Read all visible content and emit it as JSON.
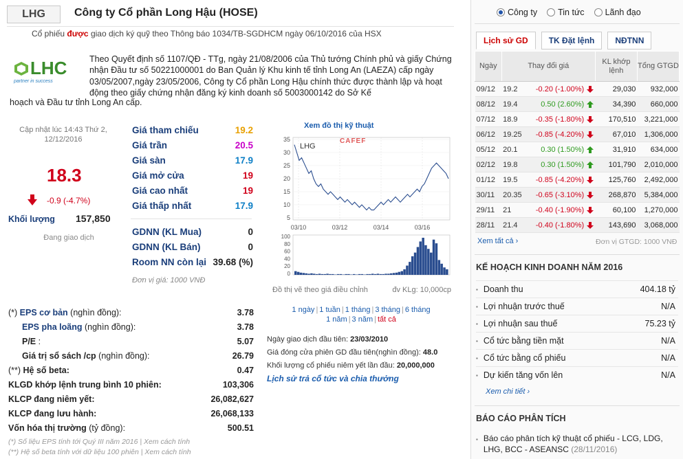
{
  "header": {
    "ticker": "LHG",
    "company": "Công ty Cổ phần Long Hậu (HOSE)",
    "listing_prefix": "Cổ phiếu ",
    "listing_bold": "được",
    "listing_suffix": " giao dịch ký quỹ theo Thông báo 1034/TB-SGDHCM ngày 06/10/2016 của HSX"
  },
  "logo": {
    "text": "LHC",
    "tagline": "partner in success"
  },
  "intro": {
    "text": "Theo Quyết định số 1107/QĐ - TTg, ngày 21/08/2006 của Thủ tướng Chính phủ và giấy Chứng nhận Đầu tư số 50221000001 do Ban Quản lý Khu kinh tế tỉnh Long An (LAEZA) cấp ngày 03/05/2007,ngày 23/05/2006, Công ty Cổ phần Long Hậu chính thức được thành lập và hoạt động theo giấy chứng nhận đăng ký kinh doanh số 5003000142 do Sở Kế",
    "text_cont": "hoạch và Đầu tư tỉnh Long An cấp."
  },
  "quote": {
    "update_line1": "Cập nhật lúc 14:43 Thứ 2,",
    "update_line2": "12/12/2016",
    "price": "18.3",
    "change": "-0.9 (-4.7%)",
    "volume_label": "Khối lượng",
    "volume": "157,850",
    "status": "Đang giao dịch"
  },
  "price_table": [
    {
      "label": "Giá tham chiếu",
      "value": "19.2",
      "color": "#e8a000"
    },
    {
      "label": "Giá trần",
      "value": "20.5",
      "color": "#c800c8"
    },
    {
      "label": "Giá sàn",
      "value": "17.9",
      "color": "#0d7fc6"
    },
    {
      "label": "Giá mở cửa",
      "value": "19",
      "color": "#d0021b"
    },
    {
      "label": "Giá cao nhất",
      "value": "19",
      "color": "#d0021b"
    },
    {
      "label": "Giá thấp nhất",
      "value": "17.9",
      "color": "#0d7fc6"
    }
  ],
  "foreign": [
    {
      "label": "GDNN (KL Mua)",
      "value": "0"
    },
    {
      "label": "GDNN (KL Bán)",
      "value": "0"
    },
    {
      "label": "Room NN còn lại",
      "value": "39.68 (%)"
    }
  ],
  "unit_note": "Đơn vị giá: 1000 VNĐ",
  "chart": {
    "link": "Xem đồ thị kỹ thuật",
    "symbol": "LHG",
    "watermark": "CAFEF",
    "price_axis": [
      "35",
      "30",
      "25",
      "20",
      "15",
      "10",
      "5"
    ],
    "vol_axis": [
      "100",
      "80",
      "60",
      "40",
      "20",
      "0"
    ],
    "x_labels": [
      "03/10",
      "03/12",
      "03/14",
      "03/16"
    ],
    "note_left": "Đồ thị vẽ theo giá điều chỉnh",
    "note_right": "đv KLg: 10,000cp",
    "ranges": [
      "1 ngày",
      "1 tuần",
      "1 tháng",
      "3 tháng",
      "6 tháng",
      "1 năm",
      "3 năm",
      "tất cả"
    ],
    "separator": "|"
  },
  "first_trade": {
    "date_label": "Ngày giao dịch đầu tiên: ",
    "date": "23/03/2010",
    "price_label": "Giá đóng cửa phiên GD đầu tiên(nghìn đồng): ",
    "price": "48.0",
    "vol_label": "Khối lượng cổ phiếu niêm yết lần đầu: ",
    "vol": "20,000,000",
    "history_link": "Lịch sử trả cổ tức và chia thưởng"
  },
  "fundamentals": [
    {
      "prefix": "(*) ",
      "label": "EPS cơ bản",
      "suffix": " (nghìn đồng):",
      "value": "3.78",
      "style": "bl"
    },
    {
      "prefix": "",
      "label": "EPS pha loãng",
      "suffix": " (nghìn đồng):",
      "value": "3.78",
      "style": "bl",
      "indent": true
    },
    {
      "prefix": "",
      "label": "P/E",
      "suffix": " :",
      "value": "5.07",
      "style": "bk",
      "indent": true
    },
    {
      "prefix": "",
      "label": "Giá trị sổ sách /cp",
      "suffix": " (nghìn đồng):",
      "value": "26.79",
      "style": "bk",
      "indent": true
    },
    {
      "prefix": "(**) ",
      "label": "Hệ số beta:",
      "suffix": "",
      "value": "0.47",
      "style": "bk"
    },
    {
      "prefix": "",
      "label": "KLGD khớp lệnh trung bình 10 phiên:",
      "suffix": "",
      "value": "103,306",
      "style": "bk"
    },
    {
      "prefix": "",
      "label": "KLCP đang niêm yết:",
      "suffix": "",
      "value": "26,082,627",
      "style": "bk"
    },
    {
      "prefix": "",
      "label": "KLCP đang lưu hành:",
      "suffix": "",
      "value": "26,068,133",
      "style": "bk"
    },
    {
      "prefix": "",
      "label": "Vốn hóa thị trường",
      "suffix": " (tỷ đồng):",
      "value": "500.51",
      "style": "bk"
    }
  ],
  "fund_notes": [
    "(*) Số liệu EPS tính tới Quý III năm 2016 | Xem cách tính",
    "(**) Hệ số beta tính với dữ liệu 100 phiên | Xem cách tính"
  ],
  "right": {
    "radios": [
      {
        "label": "Công ty",
        "checked": true
      },
      {
        "label": "Tin tức",
        "checked": false
      },
      {
        "label": "Lãnh đạo",
        "checked": false
      }
    ],
    "tabs": [
      "Lịch sử GD",
      "TK Đặt lệnh",
      "NĐTNN"
    ],
    "table_headers": [
      "Ngày",
      "Thay đổi giá",
      "KL khớp lệnh",
      "Tổng GTGD"
    ],
    "rows": [
      {
        "date": "09/12",
        "price": "19.2",
        "change": "-0.20 (-1.00%)",
        "dir": "down",
        "vol": "29,030",
        "val": "932,000"
      },
      {
        "date": "08/12",
        "price": "19.4",
        "change": "0.50 (2.60%)",
        "dir": "up",
        "vol": "34,390",
        "val": "660,000"
      },
      {
        "date": "07/12",
        "price": "18.9",
        "change": "-0.35 (-1.80%)",
        "dir": "down",
        "vol": "170,510",
        "val": "3,221,000"
      },
      {
        "date": "06/12",
        "price": "19.25",
        "change": "-0.85 (-4.20%)",
        "dir": "down",
        "vol": "67,010",
        "val": "1,306,000"
      },
      {
        "date": "05/12",
        "price": "20.1",
        "change": "0.30 (1.50%)",
        "dir": "up",
        "vol": "31,910",
        "val": "634,000"
      },
      {
        "date": "02/12",
        "price": "19.8",
        "change": "0.30 (1.50%)",
        "dir": "up",
        "vol": "101,790",
        "val": "2,010,000"
      },
      {
        "date": "01/12",
        "price": "19.5",
        "change": "-0.85 (-4.20%)",
        "dir": "down",
        "vol": "125,760",
        "val": "2,492,000"
      },
      {
        "date": "30/11",
        "price": "20.35",
        "change": "-0.65 (-3.10%)",
        "dir": "down",
        "vol": "268,870",
        "val": "5,384,000"
      },
      {
        "date": "29/11",
        "price": "21",
        "change": "-0.40 (-1.90%)",
        "dir": "down",
        "vol": "60,100",
        "val": "1,270,000"
      },
      {
        "date": "28/11",
        "price": "21.4",
        "change": "-0.40 (-1.80%)",
        "dir": "down",
        "vol": "143,690",
        "val": "3,068,000"
      }
    ],
    "view_all": "Xem tất cả",
    "unit": "Đơn vị GTGD: 1000 VNĐ",
    "plan_title": "KẾ HOẠCH KINH DOANH NĂM 2016",
    "plan": [
      {
        "label": "Doanh thu",
        "value": "404.18 tỷ"
      },
      {
        "label": "Lợi nhuận trước thuế",
        "value": "N/A"
      },
      {
        "label": "Lợi nhuận sau thuế",
        "value": "75.23 tỷ"
      },
      {
        "label": "Cổ tức bằng tiền mặt",
        "value": "N/A"
      },
      {
        "label": "Cổ tức bằng cổ phiếu",
        "value": "N/A"
      },
      {
        "label": "Dự kiến tăng vốn lên",
        "value": "N/A"
      }
    ],
    "see_detail": "Xem chi tiết",
    "report_title": "BÁO CÁO PHÂN TÍCH",
    "report_text": "Báo cáo phân tích kỹ thuật cổ phiếu - LCG, LDG, LHG, BCC - ASEANSC",
    "report_date": "(28/11/2016)"
  }
}
